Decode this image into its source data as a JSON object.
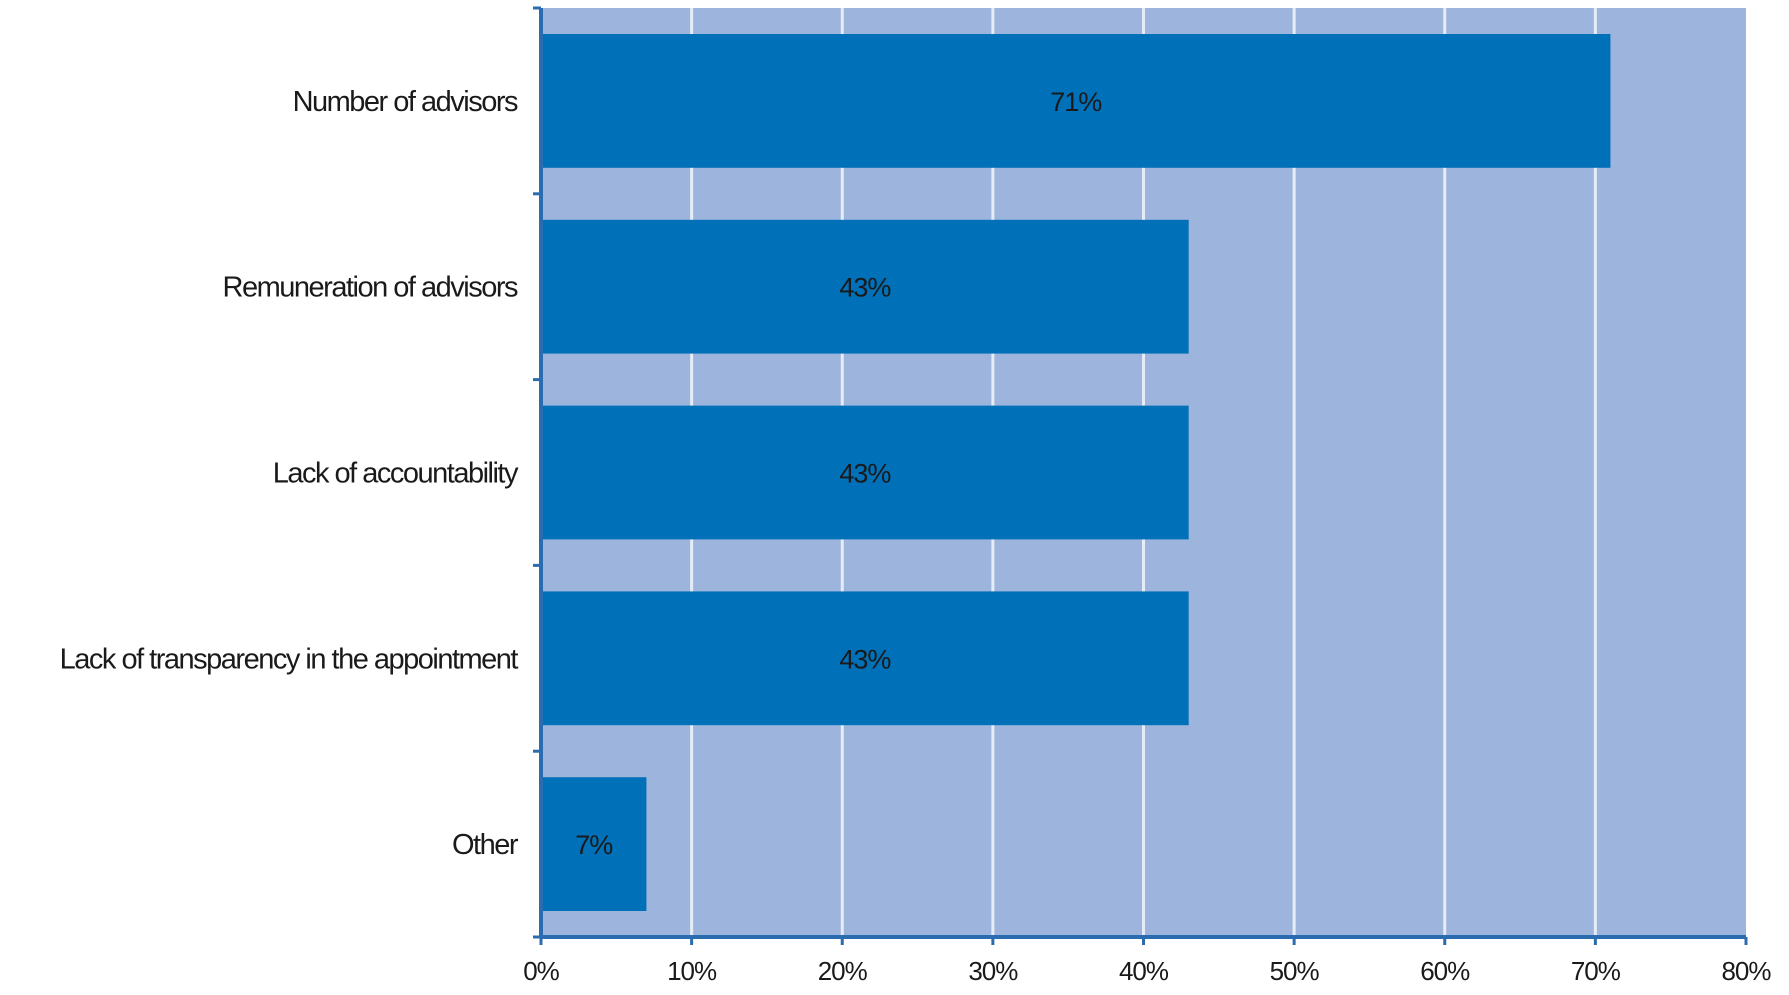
{
  "chart_data": {
    "type": "bar",
    "orientation": "horizontal",
    "categories": [
      "Number of advisors",
      "Remuneration of advisors",
      "Lack of accountability",
      "Lack of transparency in the appointment",
      "Other"
    ],
    "values": [
      71,
      43,
      43,
      43,
      7
    ],
    "data_labels": [
      "71%",
      "43%",
      "43%",
      "43%",
      "7%"
    ],
    "xlim": [
      0,
      80
    ],
    "xticks": [
      "0%",
      "10%",
      "20%",
      "30%",
      "40%",
      "50%",
      "60%",
      "70%",
      "80%"
    ],
    "title": "",
    "xlabel": "",
    "ylabel": "",
    "grid": true,
    "legend": "none",
    "colors": {
      "bar": "#0070b8",
      "plot_background": "#9db5dc",
      "gridline": "#e6ecf6",
      "axis": "#2b6cb0"
    }
  }
}
